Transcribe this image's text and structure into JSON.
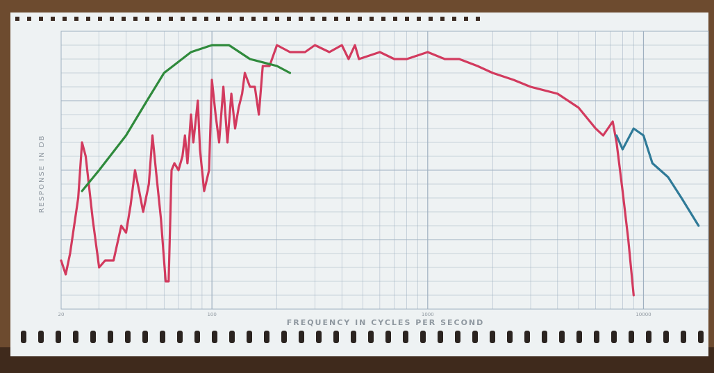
{
  "chart_data": {
    "type": "line",
    "xlabel": "FREQUENCY IN CYCLES PER SECOND",
    "ylabel": "RESPONSE IN DB",
    "x_scale": "log",
    "xlim": [
      20,
      20000
    ],
    "ylim": [
      0,
      40
    ],
    "grid": true,
    "tick_labels": [
      "20",
      "100",
      "1000",
      "10000"
    ],
    "colors": {
      "red": "#d23a5e",
      "green": "#2f8a3c",
      "blue": "#2f7a98",
      "grid": "#9fb0c0",
      "paper": "#eef2f3"
    },
    "series": [
      {
        "color": "red",
        "points": [
          [
            20,
            7
          ],
          [
            21,
            5
          ],
          [
            22,
            8
          ],
          [
            24,
            16
          ],
          [
            25,
            24
          ],
          [
            26,
            22
          ],
          [
            28,
            13
          ],
          [
            30,
            6
          ],
          [
            32,
            7
          ],
          [
            35,
            7
          ],
          [
            38,
            12
          ],
          [
            40,
            11
          ],
          [
            42,
            15
          ],
          [
            44,
            20
          ],
          [
            46,
            17
          ],
          [
            48,
            14
          ],
          [
            51,
            18
          ],
          [
            53,
            25
          ],
          [
            55,
            20
          ],
          [
            58,
            13
          ],
          [
            61,
            4
          ],
          [
            63,
            4
          ],
          [
            65,
            20
          ],
          [
            67,
            21
          ],
          [
            70,
            20
          ],
          [
            73,
            22
          ],
          [
            75,
            25
          ],
          [
            77,
            21
          ],
          [
            80,
            28
          ],
          [
            82,
            24
          ],
          [
            86,
            30
          ],
          [
            88,
            23
          ],
          [
            92,
            17
          ],
          [
            97,
            20
          ],
          [
            100,
            33
          ],
          [
            104,
            28
          ],
          [
            108,
            24
          ],
          [
            113,
            32
          ],
          [
            118,
            24
          ],
          [
            123,
            31
          ],
          [
            128,
            26
          ],
          [
            133,
            29
          ],
          [
            138,
            31
          ],
          [
            142,
            34
          ],
          [
            150,
            32
          ],
          [
            158,
            32
          ],
          [
            165,
            28
          ],
          [
            172,
            35
          ],
          [
            185,
            35
          ],
          [
            200,
            38
          ],
          [
            230,
            37
          ],
          [
            270,
            37
          ],
          [
            300,
            38
          ],
          [
            350,
            37
          ],
          [
            400,
            38
          ],
          [
            430,
            36
          ],
          [
            460,
            38
          ],
          [
            480,
            36
          ],
          [
            600,
            37
          ],
          [
            700,
            36
          ],
          [
            800,
            36
          ],
          [
            1000,
            37
          ],
          [
            1200,
            36
          ],
          [
            1400,
            36
          ],
          [
            1700,
            35
          ],
          [
            2000,
            34
          ],
          [
            2500,
            33
          ],
          [
            3000,
            32
          ],
          [
            4000,
            31
          ],
          [
            5000,
            29
          ],
          [
            6000,
            26
          ],
          [
            6500,
            25
          ],
          [
            7200,
            27
          ],
          [
            7500,
            24
          ],
          [
            8000,
            17
          ],
          [
            8500,
            10
          ],
          [
            9000,
            2
          ]
        ]
      },
      {
        "color": "green",
        "points": [
          [
            25,
            17
          ],
          [
            30,
            20
          ],
          [
            40,
            25
          ],
          [
            50,
            30
          ],
          [
            60,
            34
          ],
          [
            80,
            37
          ],
          [
            100,
            38
          ],
          [
            120,
            38
          ],
          [
            150,
            36
          ],
          [
            200,
            35
          ],
          [
            230,
            34
          ]
        ]
      },
      {
        "color": "blue",
        "points": [
          [
            7500,
            25
          ],
          [
            8000,
            23
          ],
          [
            9000,
            26
          ],
          [
            10000,
            25
          ],
          [
            11000,
            21
          ],
          [
            13000,
            19
          ],
          [
            15000,
            16
          ],
          [
            18000,
            12
          ]
        ]
      }
    ]
  }
}
